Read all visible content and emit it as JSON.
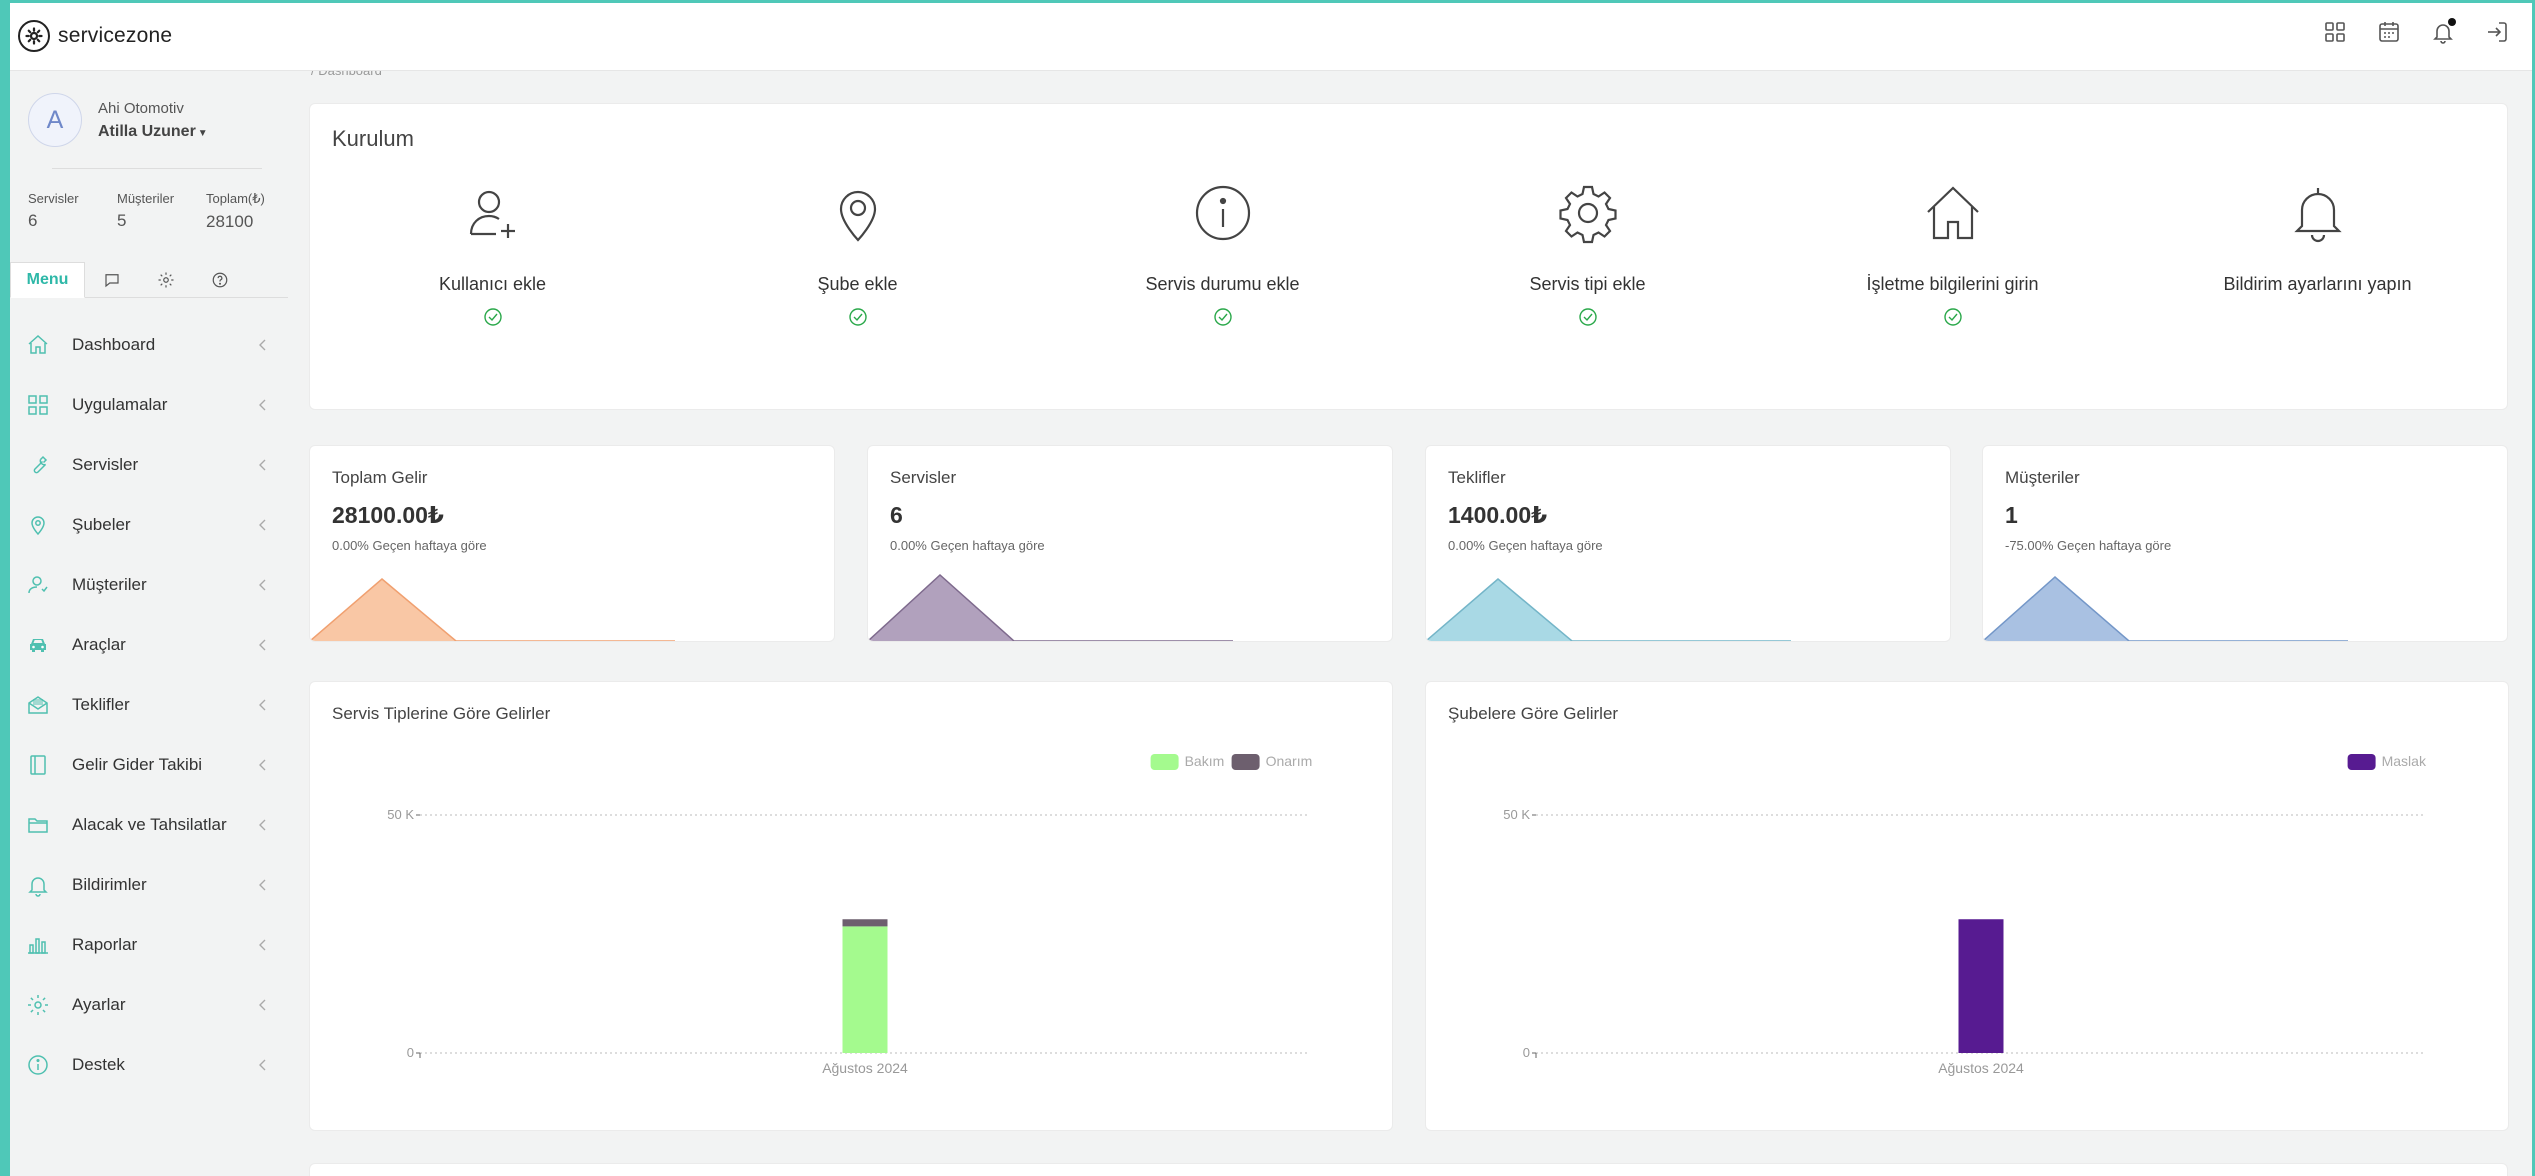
{
  "brand": {
    "name": "servicezone"
  },
  "topbar": {
    "icons": [
      "apps-grid-icon",
      "calendar-icon",
      "bell-icon",
      "logout-icon"
    ]
  },
  "user": {
    "initial": "A",
    "company": "Ahi Otomotiv",
    "name": "Atilla Uzuner"
  },
  "stats": [
    {
      "label": "Servisler",
      "value": "6"
    },
    {
      "label": "Müşteriler",
      "value": "5"
    },
    {
      "label": "Toplam(₺)",
      "value": "28100"
    }
  ],
  "tabs": {
    "menu_label": "Menu"
  },
  "menu": [
    {
      "label": "Dashboard",
      "icon": "home-icon"
    },
    {
      "label": "Uygulamalar",
      "icon": "apps-grid-icon"
    },
    {
      "label": "Servisler",
      "icon": "wrench-icon"
    },
    {
      "label": "Şubeler",
      "icon": "map-pin-icon"
    },
    {
      "label": "Müşteriler",
      "icon": "user-icon"
    },
    {
      "label": "Araçlar",
      "icon": "car-icon"
    },
    {
      "label": "Teklifler",
      "icon": "envelope-open-icon"
    },
    {
      "label": "Gelir Gider Takibi",
      "icon": "book-icon"
    },
    {
      "label": "Alacak ve Tahsilatlar",
      "icon": "folder-icon"
    },
    {
      "label": "Bildirimler",
      "icon": "bell-icon"
    },
    {
      "label": "Raporlar",
      "icon": "bar-chart-icon"
    },
    {
      "label": "Ayarlar",
      "icon": "gear-icon"
    },
    {
      "label": "Destek",
      "icon": "info-icon"
    }
  ],
  "breadcrumb": "/ Dashboard",
  "setup": {
    "title": "Kurulum",
    "items": [
      {
        "label": "Kullanıcı ekle",
        "icon": "user-plus-icon",
        "done": true
      },
      {
        "label": "Şube ekle",
        "icon": "map-pin-icon",
        "done": true
      },
      {
        "label": "Servis durumu ekle",
        "icon": "info-circle-icon",
        "done": true
      },
      {
        "label": "Servis tipi ekle",
        "icon": "gear-icon",
        "done": true
      },
      {
        "label": "İşletme bilgilerini girin",
        "icon": "home-icon",
        "done": true
      },
      {
        "label": "Bildirim ayarlarını yapın",
        "icon": "bell-icon",
        "done": false
      }
    ]
  },
  "kpis": [
    {
      "title": "Toplam Gelir",
      "value": "28100.00₺",
      "sub": "0.00% Geçen haftaya göre",
      "color": "#f7b98e"
    },
    {
      "title": "Servisler",
      "value": "6",
      "sub": "0.00% Geçen haftaya göre",
      "color": "#9e8aad"
    },
    {
      "title": "Teklifler",
      "value": "1400.00₺",
      "sub": "0.00% Geçen haftaya göre",
      "color": "#94cfde"
    },
    {
      "title": "Müşteriler",
      "value": "1",
      "sub": "-75.00% Geçen haftaya göre",
      "color": "#94b1db"
    }
  ],
  "chart_data": [
    {
      "type": "bar",
      "title": "Servis Tiplerine Göre Gelirler",
      "categories": [
        "Ağustos 2024"
      ],
      "series": [
        {
          "name": "Bakım",
          "values": [
            26600
          ],
          "color": "#a4fa8e"
        },
        {
          "name": "Onarım",
          "values": [
            1500
          ],
          "color": "#6d5f6e"
        }
      ],
      "stacked": true,
      "ylim": [
        0,
        50000
      ],
      "yticks": [
        "0",
        "50 K"
      ],
      "legend": "top-right"
    },
    {
      "type": "bar",
      "title": "Şubelere Göre Gelirler",
      "categories": [
        "Ağustos 2024"
      ],
      "series": [
        {
          "name": "Maslak",
          "values": [
            28100
          ],
          "color": "#571b91"
        }
      ],
      "stacked": true,
      "ylim": [
        0,
        50000
      ],
      "yticks": [
        "0",
        "50 K"
      ],
      "legend": "top-right"
    }
  ]
}
